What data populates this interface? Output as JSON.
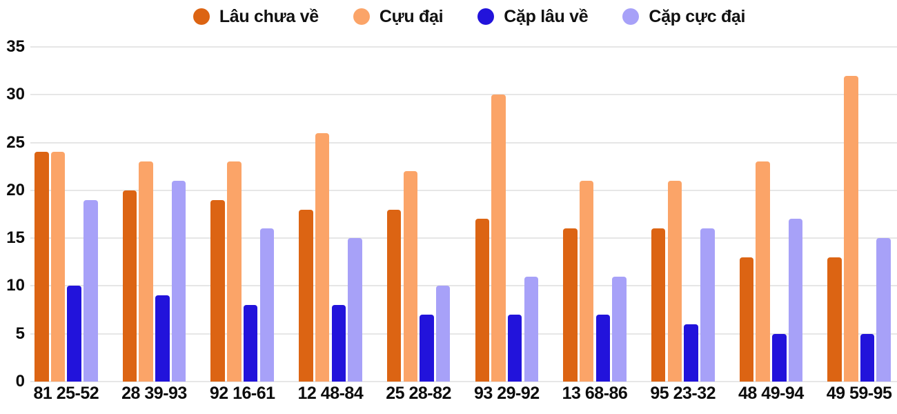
{
  "legend": [
    {
      "label": "Lâu chưa về",
      "icon": "series-dot",
      "color": "#DC6413"
    },
    {
      "label": "Cựu đại",
      "icon": "series-dot",
      "color": "#FBA468"
    },
    {
      "label": "Cặp lâu về",
      "icon": "series-dot",
      "color": "#2213DB"
    },
    {
      "label": "Cặp cực đại",
      "icon": "series-dot",
      "color": "#A7A1F8"
    }
  ],
  "chart_data": {
    "type": "bar",
    "title": "",
    "xlabel": "",
    "ylabel": "",
    "categories": [
      "81 25-52",
      "28 39-93",
      "92 16-61",
      "12 48-84",
      "25 28-82",
      "93 29-92",
      "13 68-86",
      "95 23-32",
      "48 49-94",
      "49 59-95"
    ],
    "series": [
      {
        "name": "Lâu chưa về",
        "color": "#DC6413",
        "values": [
          24,
          20,
          19,
          18,
          18,
          17,
          16,
          16,
          13,
          13
        ]
      },
      {
        "name": "Cựu đại",
        "color": "#FBA468",
        "values": [
          24,
          23,
          23,
          26,
          22,
          30,
          21,
          21,
          23,
          32
        ]
      },
      {
        "name": "Cặp lâu về",
        "color": "#2213DB",
        "values": [
          10,
          9,
          8,
          8,
          7,
          7,
          7,
          6,
          5,
          5
        ]
      },
      {
        "name": "Cặp cực đại",
        "color": "#A7A1F8",
        "values": [
          19,
          21,
          16,
          15,
          10,
          11,
          11,
          16,
          17,
          15
        ]
      }
    ],
    "ylim": [
      0,
      35
    ],
    "yticks": [
      0,
      5,
      10,
      15,
      20,
      25,
      30,
      35
    ],
    "grid": true,
    "legend_position": "top"
  },
  "colors": {
    "grid": "#e6e6e6",
    "text": "#0c0c0c",
    "background": "#ffffff"
  }
}
